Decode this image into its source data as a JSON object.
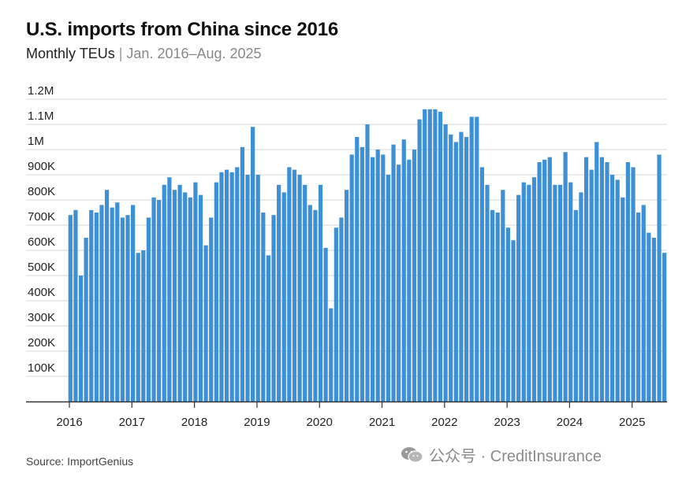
{
  "title": "U.S. imports from China since 2016",
  "subtitle_main": "Monthly TEUs",
  "subtitle_sep": "|",
  "subtitle_range": "Jan. 2016–Aug. 2025",
  "source": "Source: ImportGenius",
  "watermark": "公众号 · CreditInsurance",
  "colors": {
    "bar": "#3d8fd6",
    "grid": "#d5d5d5",
    "axis": "#333333"
  },
  "chart_data": {
    "type": "bar",
    "title": "U.S. imports from China since 2016",
    "subtitle": "Monthly TEUs | Jan. 2016–Aug. 2025",
    "xlabel": "",
    "ylabel": "",
    "ylim": [
      0,
      1200000
    ],
    "grid": true,
    "yticks": [
      100000,
      200000,
      300000,
      400000,
      500000,
      600000,
      700000,
      800000,
      900000,
      1000000,
      1100000,
      1200000
    ],
    "ytick_labels": [
      "100K",
      "200K",
      "300K",
      "400K",
      "500K",
      "600K",
      "700K",
      "800K",
      "900K",
      "1M",
      "1.1M",
      "1.2M"
    ],
    "xtick_labels": [
      "2016",
      "2017",
      "2018",
      "2019",
      "2020",
      "2021",
      "2022",
      "2023",
      "2024",
      "2025"
    ],
    "start": "2016-01",
    "end": "2025-08",
    "values": [
      740000,
      760000,
      500000,
      650000,
      760000,
      750000,
      780000,
      840000,
      770000,
      790000,
      730000,
      740000,
      780000,
      590000,
      600000,
      730000,
      810000,
      800000,
      860000,
      890000,
      840000,
      860000,
      830000,
      810000,
      870000,
      820000,
      620000,
      730000,
      870000,
      910000,
      920000,
      910000,
      930000,
      1010000,
      900000,
      1090000,
      900000,
      750000,
      580000,
      740000,
      860000,
      830000,
      930000,
      920000,
      900000,
      860000,
      780000,
      760000,
      860000,
      610000,
      370000,
      690000,
      730000,
      840000,
      980000,
      1050000,
      1010000,
      1100000,
      970000,
      1000000,
      980000,
      900000,
      1020000,
      940000,
      1040000,
      960000,
      1000000,
      1120000,
      1160000,
      1160000,
      1160000,
      1150000,
      1100000,
      1060000,
      1030000,
      1070000,
      1050000,
      1130000,
      1130000,
      930000,
      860000,
      760000,
      750000,
      840000,
      690000,
      640000,
      820000,
      870000,
      860000,
      890000,
      950000,
      960000,
      970000,
      860000,
      860000,
      990000,
      870000,
      760000,
      830000,
      970000,
      920000,
      1030000,
      970000,
      950000,
      900000,
      880000,
      810000,
      950000,
      930000,
      750000,
      780000,
      670000,
      650000,
      980000,
      590000
    ]
  }
}
